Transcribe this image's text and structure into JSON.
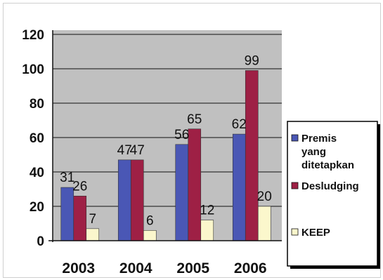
{
  "chart_data": {
    "type": "bar",
    "categories": [
      "2003",
      "2004",
      "2005",
      "2006"
    ],
    "series": [
      {
        "name": "Premis yang ditetapkan",
        "values": [
          31,
          47,
          56,
          62
        ],
        "color": "#4a57b5"
      },
      {
        "name": "Desludging",
        "values": [
          26,
          47,
          65,
          99
        ],
        "color": "#9e2045"
      },
      {
        "name": "KEEP",
        "values": [
          7,
          6,
          12,
          20
        ],
        "color": "#fbf7cc"
      }
    ],
    "ylim": [
      0,
      120
    ],
    "yticks": [
      0,
      20,
      40,
      60,
      80,
      100,
      120
    ],
    "grid": true,
    "plot_background": "#c0c0c0",
    "legend_position": "right",
    "legend_lines": [
      [
        "Premis",
        "yang",
        "ditetapkan"
      ],
      [
        "Desludging"
      ],
      [
        "KEEP"
      ]
    ],
    "title": "",
    "xlabel": "",
    "ylabel": ""
  }
}
